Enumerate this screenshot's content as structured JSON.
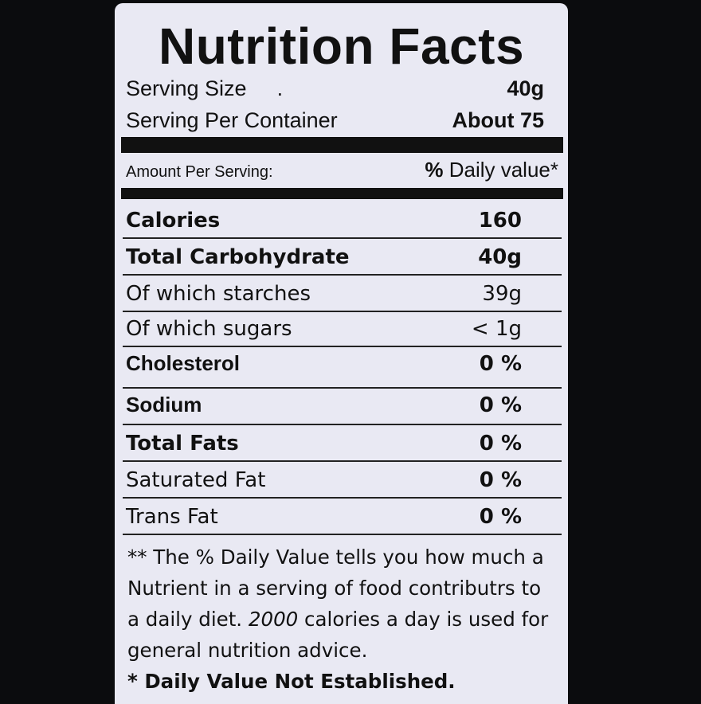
{
  "label": {
    "title": "Nutrition Facts",
    "serving_size_label": "Serving Size",
    "serving_size_dot": ".",
    "serving_size_value": "40g",
    "servings_label": "Serving Per Container",
    "servings_value": "About 75",
    "amount_label": "Amount Per Serving:",
    "dv_percent": "%",
    "dv_label": " Daily value*",
    "nutrients": [
      {
        "name": "Calories",
        "value": "160"
      },
      {
        "name": "Total Carbohydrate",
        "value": "40g"
      },
      {
        "name": "Of which starches",
        "value": "39g"
      },
      {
        "name": "Of which sugars",
        "value": "< 1g"
      },
      {
        "name": "Cholesterol",
        "value": "0 %"
      },
      {
        "name": "Sodium",
        "value": "0 %"
      },
      {
        "name": "Total Fats",
        "value": "0 %"
      },
      {
        "name": "Saturated Fat",
        "value": "0 %"
      },
      {
        "name": "Trans Fat",
        "value": "0 %"
      }
    ],
    "footnote_1": "** The % Daily Value tells you how much a",
    "footnote_2": "Nutrient in a serving of food contributrs to",
    "footnote_3a": "a daily diet. ",
    "footnote_3b": "2000",
    "footnote_3c": " calories a day is used for",
    "footnote_4": "general nutrition advice.",
    "footnote_5": "* Daily Value Not Established."
  }
}
